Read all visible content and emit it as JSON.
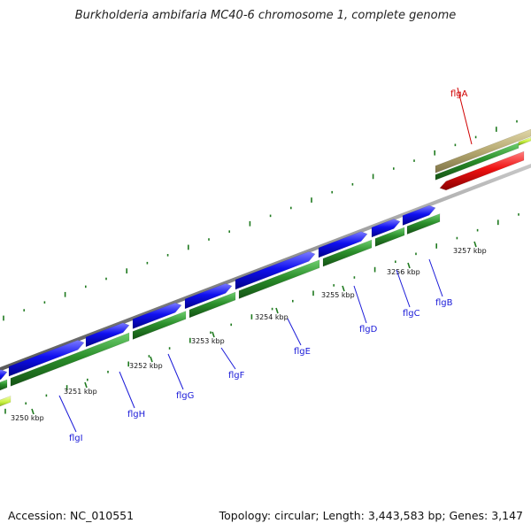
{
  "title": "Burkholderia ambifaria MC40-6 chromosome 1, complete genome",
  "footer": {
    "accession": "Accession: NC_010551",
    "stats": "Topology: circular; Length: 3,443,583 bp; Genes: 3,147"
  },
  "ticks": [
    "3250 kbp",
    "3251 kbp",
    "3252 kbp",
    "3253 kbp",
    "3254 kbp",
    "3255 kbp",
    "3256 kbp",
    "3257 kbp"
  ],
  "genes": [
    {
      "name": "flgI",
      "color": "#1a1ad8"
    },
    {
      "name": "flgH",
      "color": "#1a1ad8"
    },
    {
      "name": "flgG",
      "color": "#1a1ad8"
    },
    {
      "name": "flgF",
      "color": "#1a1ad8"
    },
    {
      "name": "flgE",
      "color": "#1a1ad8"
    },
    {
      "name": "flgD",
      "color": "#1a1ad8"
    },
    {
      "name": "flgC",
      "color": "#1a1ad8"
    },
    {
      "name": "flgB",
      "color": "#1a1ad8"
    },
    {
      "name": "flgA",
      "color": "#d00000"
    }
  ],
  "colors": {
    "forward_cds": "#0a0ae6",
    "reverse_cds": "#e60a0a",
    "gene_track": "#2e8b2e",
    "backbone": "#8c8c8c",
    "tick": "#1f7a1f"
  }
}
